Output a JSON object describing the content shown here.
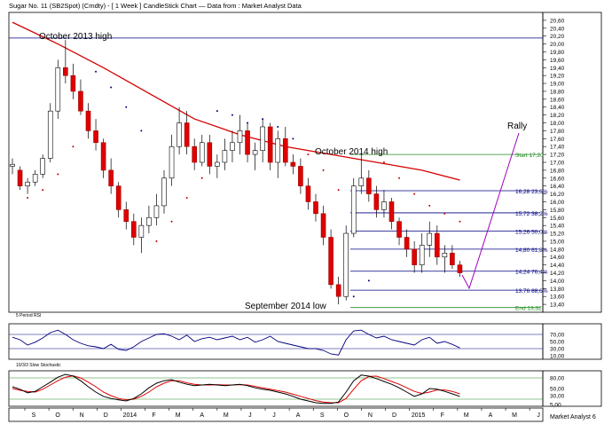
{
  "chart_data": {
    "type": "candlestick",
    "title": "Sugar No. 11 (SB2Spot) (Cmdty) - [ 1 Week ] CandleStick Chart — Data from : Market Analyst Data",
    "watermark": "Market Analyst 6",
    "x_labels": [
      "S",
      "O",
      "N",
      "D",
      "2014",
      "F",
      "M",
      "A",
      "M",
      "J",
      "J",
      "A",
      "S",
      "O",
      "N",
      "D",
      "2015",
      "F",
      "M",
      "A",
      "M",
      "J"
    ],
    "price_ylim": [
      13.2,
      20.8
    ],
    "price_ticks": [
      "20,60",
      "20,40",
      "20,20",
      "20,00",
      "19,80",
      "19,60",
      "19,40",
      "19,20",
      "19,00",
      "18,80",
      "18,60",
      "18,40",
      "18,20",
      "18,00",
      "17,80",
      "17,60",
      "17,40",
      "17,20",
      "17,00",
      "16,80",
      "16,60",
      "16,40",
      "16,20",
      "16,00",
      "15,80",
      "15,60",
      "15,40",
      "15,20",
      "15,00",
      "14,80",
      "14,60",
      "14,40",
      "14,20",
      "14,00",
      "13,80",
      "13,60",
      "13,40"
    ],
    "candles": [
      {
        "o": 16.9,
        "h": 17.1,
        "l": 16.7,
        "c": 16.95
      },
      {
        "o": 16.8,
        "h": 16.9,
        "l": 16.3,
        "c": 16.4
      },
      {
        "o": 16.4,
        "h": 16.6,
        "l": 16.2,
        "c": 16.5
      },
      {
        "o": 16.5,
        "h": 16.8,
        "l": 16.4,
        "c": 16.7
      },
      {
        "o": 16.7,
        "h": 17.2,
        "l": 16.6,
        "c": 17.1
      },
      {
        "o": 17.1,
        "h": 18.5,
        "l": 17.0,
        "c": 18.3
      },
      {
        "o": 18.3,
        "h": 19.6,
        "l": 18.1,
        "c": 19.4
      },
      {
        "o": 19.4,
        "h": 20.1,
        "l": 19.0,
        "c": 19.2
      },
      {
        "o": 19.2,
        "h": 19.5,
        "l": 18.6,
        "c": 18.8
      },
      {
        "o": 18.8,
        "h": 19.1,
        "l": 18.2,
        "c": 18.3
      },
      {
        "o": 18.3,
        "h": 18.5,
        "l": 17.6,
        "c": 17.8
      },
      {
        "o": 17.8,
        "h": 18.1,
        "l": 17.3,
        "c": 17.5
      },
      {
        "o": 17.5,
        "h": 17.6,
        "l": 16.6,
        "c": 16.8
      },
      {
        "o": 16.8,
        "h": 17.1,
        "l": 16.2,
        "c": 16.4
      },
      {
        "o": 16.4,
        "h": 16.5,
        "l": 15.6,
        "c": 15.8
      },
      {
        "o": 15.8,
        "h": 16.0,
        "l": 15.3,
        "c": 15.5
      },
      {
        "o": 15.5,
        "h": 15.7,
        "l": 14.9,
        "c": 15.1
      },
      {
        "o": 15.1,
        "h": 15.6,
        "l": 14.7,
        "c": 15.4
      },
      {
        "o": 15.4,
        "h": 15.9,
        "l": 15.2,
        "c": 15.6
      },
      {
        "o": 15.6,
        "h": 16.2,
        "l": 15.4,
        "c": 15.9
      },
      {
        "o": 15.9,
        "h": 16.8,
        "l": 15.7,
        "c": 16.6
      },
      {
        "o": 16.6,
        "h": 17.7,
        "l": 16.4,
        "c": 17.4
      },
      {
        "o": 17.4,
        "h": 18.4,
        "l": 17.2,
        "c": 18.0
      },
      {
        "o": 18.0,
        "h": 18.3,
        "l": 17.2,
        "c": 17.4
      },
      {
        "o": 17.4,
        "h": 17.6,
        "l": 16.8,
        "c": 17.0
      },
      {
        "o": 17.0,
        "h": 17.7,
        "l": 16.9,
        "c": 17.5
      },
      {
        "o": 17.5,
        "h": 17.7,
        "l": 16.7,
        "c": 16.9
      },
      {
        "o": 16.9,
        "h": 17.2,
        "l": 16.6,
        "c": 17.0
      },
      {
        "o": 17.0,
        "h": 17.6,
        "l": 16.8,
        "c": 17.3
      },
      {
        "o": 17.3,
        "h": 17.8,
        "l": 17.0,
        "c": 17.5
      },
      {
        "o": 17.5,
        "h": 18.2,
        "l": 17.2,
        "c": 17.8
      },
      {
        "o": 17.8,
        "h": 18.0,
        "l": 17.0,
        "c": 17.2
      },
      {
        "o": 17.2,
        "h": 17.5,
        "l": 16.8,
        "c": 17.3
      },
      {
        "o": 17.3,
        "h": 18.1,
        "l": 17.0,
        "c": 17.9
      },
      {
        "o": 17.9,
        "h": 18.0,
        "l": 16.8,
        "c": 17.0
      },
      {
        "o": 17.0,
        "h": 17.8,
        "l": 16.6,
        "c": 17.6
      },
      {
        "o": 17.6,
        "h": 17.9,
        "l": 16.9,
        "c": 17.0
      },
      {
        "o": 17.0,
        "h": 17.2,
        "l": 16.7,
        "c": 16.9
      },
      {
        "o": 16.9,
        "h": 17.1,
        "l": 16.2,
        "c": 16.4
      },
      {
        "o": 16.4,
        "h": 16.6,
        "l": 15.8,
        "c": 16.0
      },
      {
        "o": 16.0,
        "h": 16.2,
        "l": 15.5,
        "c": 15.7
      },
      {
        "o": 15.7,
        "h": 15.9,
        "l": 14.9,
        "c": 15.1
      },
      {
        "o": 15.1,
        "h": 15.3,
        "l": 13.8,
        "c": 13.9
      },
      {
        "o": 13.9,
        "h": 14.1,
        "l": 13.4,
        "c": 13.6
      },
      {
        "o": 13.6,
        "h": 15.4,
        "l": 13.5,
        "c": 15.2
      },
      {
        "o": 15.2,
        "h": 16.6,
        "l": 15.1,
        "c": 16.4
      },
      {
        "o": 16.4,
        "h": 17.2,
        "l": 16.2,
        "c": 16.6
      },
      {
        "o": 16.6,
        "h": 16.8,
        "l": 16.0,
        "c": 16.2
      },
      {
        "o": 16.2,
        "h": 16.4,
        "l": 15.6,
        "c": 15.8
      },
      {
        "o": 15.8,
        "h": 16.3,
        "l": 15.6,
        "c": 16.0
      },
      {
        "o": 16.0,
        "h": 16.1,
        "l": 15.3,
        "c": 15.5
      },
      {
        "o": 15.5,
        "h": 15.6,
        "l": 14.9,
        "c": 15.1
      },
      {
        "o": 15.1,
        "h": 15.3,
        "l": 14.6,
        "c": 14.8
      },
      {
        "o": 14.8,
        "h": 15.0,
        "l": 14.2,
        "c": 14.4
      },
      {
        "o": 14.4,
        "h": 15.2,
        "l": 14.2,
        "c": 14.9
      },
      {
        "o": 14.9,
        "h": 15.5,
        "l": 14.6,
        "c": 15.2
      },
      {
        "o": 15.2,
        "h": 15.4,
        "l": 14.4,
        "c": 14.6
      },
      {
        "o": 14.6,
        "h": 14.9,
        "l": 14.2,
        "c": 14.7
      },
      {
        "o": 14.7,
        "h": 14.9,
        "l": 14.3,
        "c": 14.4
      },
      {
        "o": 14.4,
        "h": 14.5,
        "l": 14.1,
        "c": 14.2
      }
    ],
    "moving_average": [
      {
        "i": 0,
        "v": 20.55
      },
      {
        "i": 6,
        "v": 20.0
      },
      {
        "i": 12,
        "v": 19.4
      },
      {
        "i": 18,
        "v": 18.75
      },
      {
        "i": 24,
        "v": 18.1
      },
      {
        "i": 30,
        "v": 17.7
      },
      {
        "i": 36,
        "v": 17.4
      },
      {
        "i": 42,
        "v": 17.2
      },
      {
        "i": 48,
        "v": 17.0
      },
      {
        "i": 54,
        "v": 16.8
      },
      {
        "i": 59,
        "v": 16.55
      }
    ],
    "parabolic_sar": [
      {
        "i": 2,
        "v": 16.1
      },
      {
        "i": 4,
        "v": 16.3
      },
      {
        "i": 6,
        "v": 16.7
      },
      {
        "i": 8,
        "v": 17.4
      },
      {
        "i": 11,
        "v": 19.3
      },
      {
        "i": 13,
        "v": 18.9
      },
      {
        "i": 15,
        "v": 18.4
      },
      {
        "i": 17,
        "v": 17.8
      },
      {
        "i": 19,
        "v": 15.0
      },
      {
        "i": 21,
        "v": 15.5
      },
      {
        "i": 23,
        "v": 16.1
      },
      {
        "i": 25,
        "v": 16.6
      },
      {
        "i": 27,
        "v": 18.3
      },
      {
        "i": 29,
        "v": 18.2
      },
      {
        "i": 31,
        "v": 18.0
      },
      {
        "i": 33,
        "v": 18.1
      },
      {
        "i": 35,
        "v": 17.9
      },
      {
        "i": 37,
        "v": 17.6
      },
      {
        "i": 39,
        "v": 17.2
      },
      {
        "i": 41,
        "v": 16.8
      },
      {
        "i": 43,
        "v": 16.3
      },
      {
        "i": 45,
        "v": 13.6
      },
      {
        "i": 47,
        "v": 14.0
      },
      {
        "i": 49,
        "v": 17.0
      },
      {
        "i": 51,
        "v": 16.6
      },
      {
        "i": 53,
        "v": 16.2
      },
      {
        "i": 55,
        "v": 15.9
      },
      {
        "i": 57,
        "v": 15.7
      },
      {
        "i": 59,
        "v": 15.5
      }
    ],
    "fib_levels": [
      {
        "price": 17.2,
        "label": "Start 17,20",
        "color": "#228b22"
      },
      {
        "price": 16.28,
        "label": "16,28 23,6%",
        "color": "#000080"
      },
      {
        "price": 15.72,
        "label": "15,72 38,2%",
        "color": "#000080"
      },
      {
        "price": 15.26,
        "label": "15,26 50,0%",
        "color": "#000080"
      },
      {
        "price": 14.8,
        "label": "14,80 61,8%",
        "color": "#000080"
      },
      {
        "price": 14.24,
        "label": "14,24 76,4%",
        "color": "#000080"
      },
      {
        "price": 13.76,
        "label": "13,76 88,6%",
        "color": "#000080"
      },
      {
        "price": 13.32,
        "label": "End 13,32",
        "color": "#228b22"
      }
    ],
    "high_line": {
      "price": 20.15
    },
    "annotations": {
      "oct2013": "October 2013 high",
      "oct2014": "October 2014 high",
      "sep2014": "September 2014 low",
      "rally": "Rally"
    },
    "rsi": {
      "title": "5 Period RSI",
      "ticks": [
        "70,00",
        "50,00",
        "30,00",
        "10,00"
      ],
      "ylim": [
        0,
        100
      ],
      "levels": [
        70,
        30
      ],
      "values": [
        62,
        55,
        40,
        48,
        60,
        75,
        82,
        70,
        55,
        45,
        38,
        35,
        30,
        42,
        28,
        25,
        35,
        50,
        60,
        70,
        72,
        65,
        55,
        68,
        50,
        58,
        62,
        55,
        60,
        65,
        55,
        62,
        48,
        55,
        65,
        50,
        45,
        40,
        35,
        30,
        30,
        25,
        15,
        12,
        55,
        80,
        82,
        70,
        60,
        65,
        55,
        50,
        45,
        40,
        55,
        62,
        45,
        50,
        42,
        32
      ]
    },
    "stochastic": {
      "title": "10/3/3 Slow Stochastic",
      "ticks": [
        "80,00",
        "50,00",
        "30,00",
        "5,00"
      ],
      "ylim": [
        0,
        100
      ],
      "levels": [
        80,
        20
      ],
      "k": [
        55,
        48,
        38,
        42,
        55,
        68,
        82,
        90,
        85,
        72,
        55,
        40,
        28,
        22,
        18,
        15,
        22,
        35,
        52,
        65,
        72,
        75,
        68,
        62,
        58,
        60,
        62,
        60,
        58,
        60,
        62,
        58,
        52,
        48,
        45,
        40,
        35,
        28,
        20,
        15,
        10,
        8,
        8,
        12,
        40,
        72,
        88,
        85,
        78,
        70,
        62,
        52,
        40,
        28,
        35,
        50,
        48,
        42,
        35,
        28
      ],
      "d": [
        50,
        45,
        42,
        40,
        48,
        60,
        72,
        82,
        86,
        80,
        68,
        55,
        40,
        30,
        22,
        18,
        20,
        28,
        40,
        55,
        65,
        72,
        72,
        66,
        62,
        60,
        60,
        61,
        60,
        60,
        61,
        60,
        56,
        52,
        48,
        44,
        40,
        34,
        28,
        22,
        16,
        12,
        10,
        10,
        22,
        48,
        72,
        84,
        85,
        78,
        70,
        62,
        52,
        42,
        36,
        40,
        46,
        46,
        42,
        35
      ]
    }
  }
}
